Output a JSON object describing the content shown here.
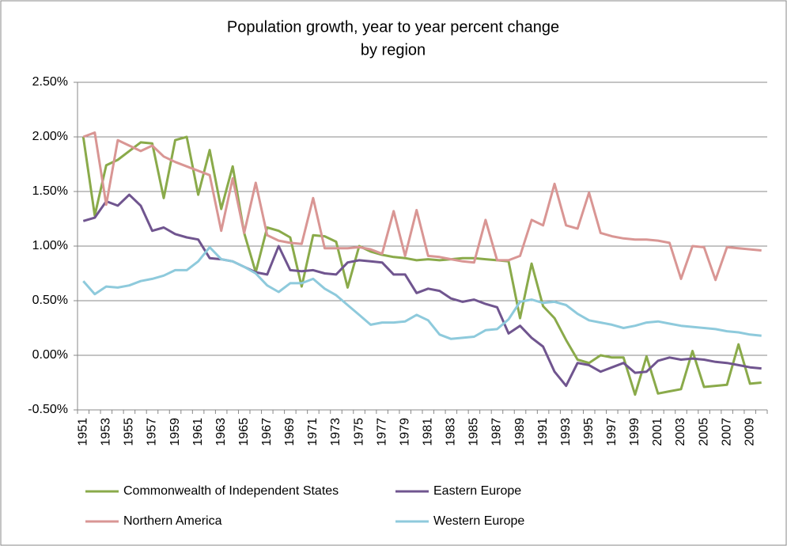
{
  "chart_data": {
    "type": "line",
    "title": [
      "Population growth, year to year percent change",
      "by region"
    ],
    "categories": [
      "1951",
      null,
      "1953",
      null,
      "1955",
      null,
      "1957",
      null,
      "1959",
      null,
      "1961",
      null,
      "1963",
      null,
      "1965",
      null,
      "1967",
      null,
      "1969",
      null,
      "1971",
      null,
      "1973",
      null,
      "1975",
      null,
      "1977",
      null,
      "1979",
      null,
      "1981",
      null,
      "1983",
      null,
      "1985",
      null,
      "1987",
      null,
      "1989",
      null,
      "1991",
      null,
      "1993",
      null,
      "1995",
      null,
      "1997",
      null,
      "1999",
      null,
      "2001",
      null,
      "2003",
      null,
      "2005",
      null,
      "2007",
      null,
      "2009",
      null
    ],
    "series": [
      {
        "name": "Commonwealth of Independent States",
        "color": "#8aaa4a",
        "values": [
          2.0,
          1.28,
          1.74,
          1.79,
          1.87,
          1.95,
          1.94,
          1.44,
          1.97,
          2.0,
          1.47,
          1.88,
          1.34,
          1.73,
          1.12,
          0.76,
          1.17,
          1.14,
          1.08,
          0.63,
          1.1,
          1.09,
          1.04,
          0.62,
          1.0,
          0.95,
          0.92,
          0.9,
          0.89,
          0.87,
          0.88,
          0.87,
          0.88,
          0.89,
          0.89,
          0.88,
          0.87,
          0.86,
          0.34,
          0.84,
          0.45,
          0.34,
          0.14,
          -0.04,
          -0.07,
          0.0,
          -0.02,
          -0.02,
          -0.36,
          -0.01,
          -0.35,
          -0.33,
          -0.31,
          0.04,
          -0.29,
          -0.28,
          -0.27,
          0.1,
          -0.26,
          -0.25
        ]
      },
      {
        "name": "Eastern Europe",
        "color": "#70558f",
        "values": [
          1.23,
          1.26,
          1.41,
          1.37,
          1.47,
          1.37,
          1.14,
          1.17,
          1.11,
          1.08,
          1.06,
          0.89,
          0.88,
          0.86,
          0.81,
          0.76,
          0.74,
          1.0,
          0.78,
          0.77,
          0.78,
          0.75,
          0.74,
          0.85,
          0.87,
          0.86,
          0.85,
          0.74,
          0.74,
          0.57,
          0.61,
          0.59,
          0.52,
          0.49,
          0.51,
          0.47,
          0.44,
          0.2,
          0.27,
          0.16,
          0.08,
          -0.15,
          -0.28,
          -0.07,
          -0.09,
          -0.15,
          -0.11,
          -0.07,
          -0.16,
          -0.15,
          -0.05,
          -0.02,
          -0.04,
          -0.03,
          -0.04,
          -0.06,
          -0.07,
          -0.09,
          -0.11,
          -0.12
        ]
      },
      {
        "name": "Northern America",
        "color": "#d99694",
        "values": [
          2.0,
          2.04,
          1.38,
          1.97,
          1.92,
          1.87,
          1.92,
          1.82,
          1.77,
          1.73,
          1.69,
          1.65,
          1.14,
          1.62,
          1.12,
          1.58,
          1.1,
          1.05,
          1.03,
          1.02,
          1.44,
          0.98,
          0.98,
          0.98,
          0.99,
          0.97,
          0.93,
          1.32,
          0.91,
          1.33,
          0.91,
          0.9,
          0.88,
          0.86,
          0.85,
          1.24,
          0.87,
          0.87,
          0.91,
          1.24,
          1.19,
          1.57,
          1.19,
          1.16,
          1.49,
          1.12,
          1.09,
          1.07,
          1.06,
          1.06,
          1.05,
          1.03,
          0.7,
          1.0,
          0.99,
          0.69,
          0.99,
          0.98,
          0.97,
          0.96
        ]
      },
      {
        "name": "Western Europe",
        "color": "#8ecadc",
        "values": [
          0.68,
          0.56,
          0.63,
          0.62,
          0.64,
          0.68,
          0.7,
          0.73,
          0.78,
          0.78,
          0.86,
          0.99,
          0.88,
          0.86,
          0.81,
          0.75,
          0.64,
          0.58,
          0.66,
          0.66,
          0.7,
          0.61,
          0.55,
          0.46,
          0.37,
          0.28,
          0.3,
          0.3,
          0.31,
          0.37,
          0.32,
          0.19,
          0.15,
          0.16,
          0.17,
          0.23,
          0.24,
          0.33,
          0.49,
          0.51,
          0.48,
          0.49,
          0.46,
          0.38,
          0.32,
          0.3,
          0.28,
          0.25,
          0.27,
          0.3,
          0.31,
          0.29,
          0.27,
          0.26,
          0.25,
          0.24,
          0.22,
          0.21,
          0.19,
          0.18
        ]
      }
    ],
    "ylim": [
      -0.5,
      2.5
    ],
    "yticks": [
      {
        "value": -0.5,
        "label": "-0.50%"
      },
      {
        "value": 0,
        "label": "0.00%"
      },
      {
        "value": 0.5,
        "label": "0.50%"
      },
      {
        "value": 1,
        "label": "1.00%"
      },
      {
        "value": 1.5,
        "label": "1.50%"
      },
      {
        "value": 2,
        "label": "2.00%"
      },
      {
        "value": 2.5,
        "label": "2.50%"
      }
    ],
    "grid": true,
    "legend": "bottom"
  }
}
